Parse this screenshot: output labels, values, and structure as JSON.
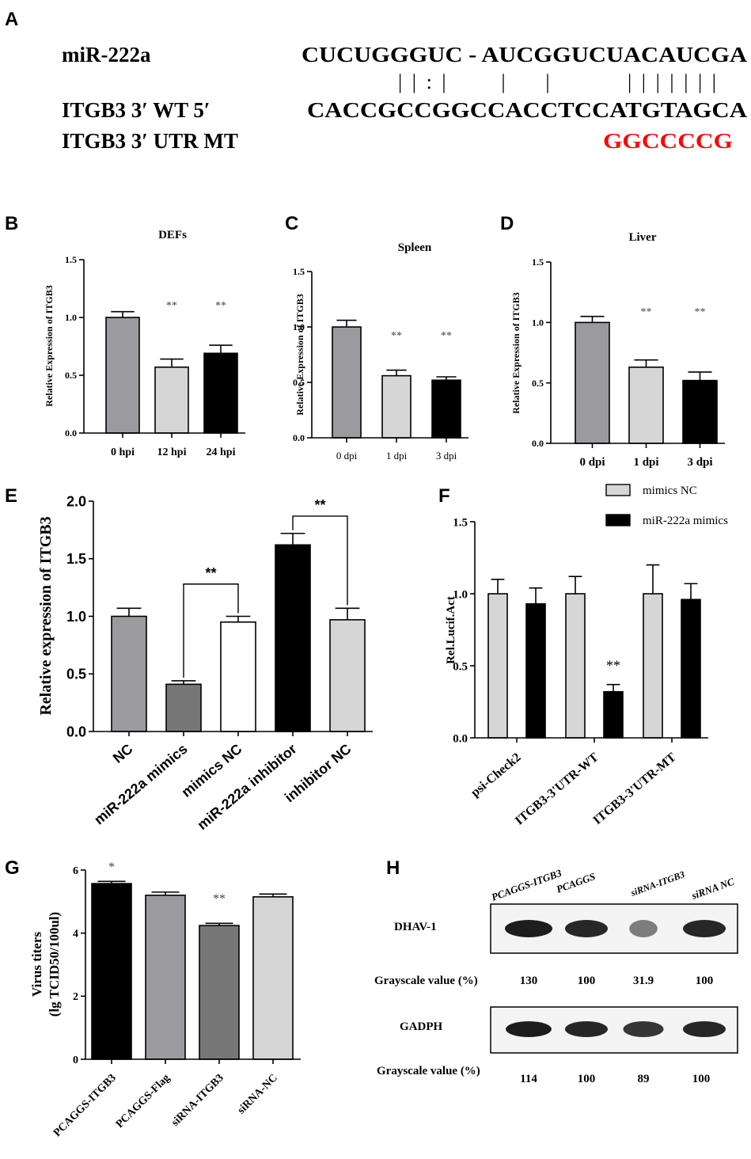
{
  "colors": {
    "gray": "#9B9B9F",
    "light": "#D6D6D6",
    "black": "#000000",
    "dark": "#777777",
    "white": "#FFFFFF",
    "red": "#FF0000"
  },
  "panel_a": {
    "letter": "A",
    "mirna_label": "miR-222a",
    "mirna_seq": "CUCUGGGUC - AUCGGUCUACAUCGA",
    "pairing": "| | : |       |     |          | | | | | | |",
    "wt_label": "ITGB3 3′ WT 5′",
    "wt_seq": "CACCGCCGGCCACCTCCATGTAGCA",
    "mt_label": "ITGB3 3′ UTR  MT",
    "mt_seq": "GGCCCCG"
  },
  "panel_h": {
    "letter": "H",
    "lanes": [
      "PCAGGS-ITGB3",
      "PCAGGS",
      "siRNA-ITGB3",
      "siRNA NC"
    ],
    "blot1_label": "DHAV-1",
    "blot1_gray_label": "Grayscale value (%)",
    "blot1_values": [
      "130",
      "100",
      "31.9",
      "100"
    ],
    "blot2_label": "GADPH",
    "blot2_gray_label": "Grayscale value (%)",
    "blot2_values": [
      "114",
      "100",
      "89",
      "100"
    ],
    "blot1_intensity": [
      1.3,
      1.0,
      0.319,
      1.0
    ],
    "blot2_intensity": [
      1.14,
      1.0,
      0.89,
      1.0
    ]
  },
  "chart_data": [
    {
      "id": "B",
      "letter": "B",
      "type": "bar",
      "title": "DEFs",
      "ylabel": "Relative Expression of ITGB3",
      "xlabel": "",
      "categories": [
        "0 hpi",
        "12 hpi",
        "24 hpi"
      ],
      "values": [
        1.0,
        0.57,
        0.69
      ],
      "errors": [
        0.05,
        0.07,
        0.07
      ],
      "significance": [
        "",
        "**",
        "**"
      ],
      "ylim": [
        0,
        1.5
      ],
      "yticks": [
        "0.0",
        "0.5",
        "1.0",
        "1.5"
      ],
      "tick_values": [
        0,
        0.5,
        1.0,
        1.5
      ],
      "bar_colors": [
        "#9B9B9F",
        "#D6D6D6",
        "#000000"
      ]
    },
    {
      "id": "C",
      "letter": "C",
      "type": "bar",
      "title": "Spleen",
      "ylabel": "Relative Expression of ITGB3",
      "xlabel": "",
      "categories": [
        "0 dpi",
        "1 dpi",
        "3 dpi"
      ],
      "values": [
        1.0,
        0.56,
        0.52
      ],
      "errors": [
        0.06,
        0.05,
        0.03
      ],
      "significance": [
        "",
        "**",
        "**"
      ],
      "ylim": [
        0,
        1.5
      ],
      "yticks": [
        "0.0",
        "0.5",
        "1.0",
        "1.5"
      ],
      "tick_values": [
        0,
        0.5,
        1.0,
        1.5
      ],
      "bar_colors": [
        "#9B9B9F",
        "#D6D6D6",
        "#000000"
      ]
    },
    {
      "id": "D",
      "letter": "D",
      "type": "bar",
      "title": "Liver",
      "ylabel": "Relative Expression of ITGB3",
      "xlabel": "",
      "categories": [
        "0 dpi",
        "1 dpi",
        "3 dpi"
      ],
      "values": [
        1.0,
        0.63,
        0.52
      ],
      "errors": [
        0.05,
        0.06,
        0.07
      ],
      "significance": [
        "",
        "**",
        "**"
      ],
      "ylim": [
        0,
        1.5
      ],
      "yticks": [
        "0.0",
        "0.5",
        "1.0",
        "1.5"
      ],
      "tick_values": [
        0,
        0.5,
        1.0,
        1.5
      ],
      "bar_colors": [
        "#9B9B9F",
        "#D6D6D6",
        "#000000"
      ]
    },
    {
      "id": "E",
      "letter": "E",
      "type": "bar",
      "title": "",
      "ylabel": "Relative expression of ITGB3",
      "xlabel": "",
      "categories": [
        "NC",
        "miR-222a mimics",
        "mimics NC",
        "miR-222a inhibitor",
        "inhibitor NC"
      ],
      "values": [
        1.0,
        0.41,
        0.95,
        1.62,
        0.97
      ],
      "errors": [
        0.07,
        0.03,
        0.05,
        0.1,
        0.1
      ],
      "brackets": [
        {
          "from": 1,
          "to": 2,
          "label": "**",
          "level": 1.28
        },
        {
          "from": 3,
          "to": 4,
          "label": "**",
          "level": 1.87
        }
      ],
      "ylim": [
        0,
        2.0
      ],
      "yticks": [
        "0.0",
        "0.5",
        "1.0",
        "1.5",
        "2.0"
      ],
      "tick_values": [
        0,
        0.5,
        1.0,
        1.5,
        2.0
      ],
      "bar_colors": [
        "#9B9B9F",
        "#777777",
        "#FFFFFF",
        "#000000",
        "#D6D6D6"
      ]
    },
    {
      "id": "F",
      "letter": "F",
      "type": "bar",
      "title": "",
      "ylabel": "Rel.Lucif.Act",
      "xlabel": "",
      "categories": [
        "psi-Check2",
        "ITGB3-3'UTR-WT",
        "ITGB3-3'UTR-MT"
      ],
      "series": [
        {
          "name": "mimics NC",
          "values": [
            1.0,
            1.0,
            1.0
          ],
          "errors": [
            0.1,
            0.12,
            0.2
          ],
          "color": "#D6D6D6"
        },
        {
          "name": "miR-222a mimics",
          "values": [
            0.93,
            0.32,
            0.96
          ],
          "errors": [
            0.11,
            0.05,
            0.11
          ],
          "color": "#000000"
        }
      ],
      "significance": [
        [
          "",
          ""
        ],
        [
          "",
          "**"
        ],
        [
          "",
          ""
        ]
      ],
      "legend_position": "top-right",
      "ylim": [
        0,
        1.5
      ],
      "yticks": [
        "0.0",
        "0.5",
        "1.0",
        "1.5"
      ],
      "tick_values": [
        0,
        0.5,
        1.0,
        1.5
      ]
    },
    {
      "id": "G",
      "letter": "G",
      "type": "bar",
      "title": "",
      "ylabel": "Virus titers",
      "ylabel2": "(lg TCID50/100ul)",
      "categories": [
        "PCAGGS-ITGB3",
        "PCAGGS-Flag",
        "siRNA-ITGB3",
        "siRNA-NC"
      ],
      "values": [
        5.57,
        5.2,
        4.24,
        5.15
      ],
      "errors": [
        0.07,
        0.1,
        0.07,
        0.09
      ],
      "significance": [
        "*",
        "",
        "**",
        ""
      ],
      "ylim": [
        0,
        6
      ],
      "yticks": [
        "0",
        "2",
        "4",
        "6"
      ],
      "tick_values": [
        0,
        2,
        4,
        6
      ],
      "bar_colors": [
        "#000000",
        "#9B9B9F",
        "#777777",
        "#D6D6D6"
      ]
    }
  ]
}
